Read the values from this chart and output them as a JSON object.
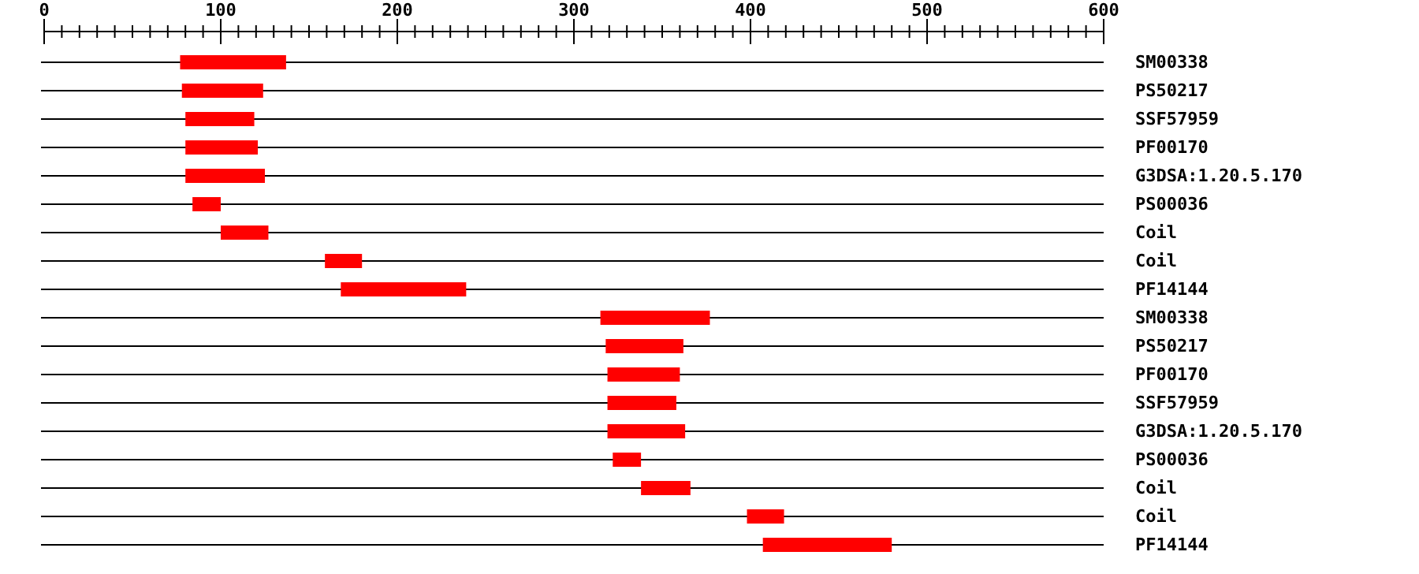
{
  "chart_data": {
    "type": "bar",
    "orientation": "horizontal",
    "color": "#ff0000",
    "grid": "y",
    "categories": [
      "SM00338",
      "PS50217",
      "SSF57959",
      "PF00170",
      "G3DSA:1.20.5.170",
      "PS00036",
      "Coil",
      "Coil",
      "PF14144",
      "SM00338",
      "PS50217",
      "PF00170",
      "SSF57959",
      "G3DSA:1.20.5.170",
      "PS00036",
      "Coil",
      "Coil",
      "PF14144"
    ],
    "base": [
      77,
      78,
      80,
      80,
      80,
      84,
      100,
      159,
      168,
      315,
      318,
      319,
      319,
      319,
      322,
      338,
      398,
      407
    ],
    "values": [
      60,
      46,
      39,
      41,
      45,
      16,
      27,
      21,
      71,
      62,
      44,
      41,
      39,
      44,
      16,
      28,
      21,
      73
    ],
    "xlim": [
      0,
      600
    ],
    "xticks": [
      0,
      {
        "value": 10,
        "label": null
      },
      {
        "value": 20,
        "label": null
      },
      {
        "value": 30,
        "label": null
      },
      {
        "value": 40,
        "label": null
      },
      {
        "value": 50,
        "label": null
      },
      {
        "value": 60,
        "label": null
      },
      {
        "value": 70,
        "label": null
      },
      {
        "value": 80,
        "label": null
      },
      {
        "value": 90,
        "label": null
      },
      100,
      {
        "value": 110,
        "label": null
      },
      {
        "value": 120,
        "label": null
      },
      {
        "value": 130,
        "label": null
      },
      {
        "value": 140,
        "label": null
      },
      {
        "value": 150,
        "label": null
      },
      {
        "value": 160,
        "label": null
      },
      {
        "value": 170,
        "label": null
      },
      {
        "value": 180,
        "label": null
      },
      {
        "value": 190,
        "label": null
      },
      200,
      {
        "value": 210,
        "label": null
      },
      {
        "value": 220,
        "label": null
      },
      {
        "value": 230,
        "label": null
      },
      {
        "value": 240,
        "label": null
      },
      {
        "value": 250,
        "label": null
      },
      {
        "value": 260,
        "label": null
      },
      {
        "value": 270,
        "label": null
      },
      {
        "value": 280,
        "label": null
      },
      {
        "value": 290,
        "label": null
      },
      300,
      {
        "value": 310,
        "label": null
      },
      {
        "value": 320,
        "label": null
      },
      {
        "value": 330,
        "label": null
      },
      {
        "value": 340,
        "label": null
      },
      {
        "value": 350,
        "label": null
      },
      {
        "value": 360,
        "label": null
      },
      {
        "value": 370,
        "label": null
      },
      {
        "value": 380,
        "label": null
      },
      {
        "value": 390,
        "label": null
      },
      400,
      {
        "value": 410,
        "label": null
      },
      {
        "value": 420,
        "label": null
      },
      {
        "value": 430,
        "label": null
      },
      {
        "value": 440,
        "label": null
      },
      {
        "value": 450,
        "label": null
      },
      {
        "value": 460,
        "label": null
      },
      {
        "value": 470,
        "label": null
      },
      {
        "value": 480,
        "label": null
      },
      {
        "value": 490,
        "label": null
      },
      500,
      {
        "value": 510,
        "label": null
      },
      {
        "value": 520,
        "label": null
      },
      {
        "value": 530,
        "label": null
      },
      {
        "value": 540,
        "label": null
      },
      {
        "value": 550,
        "label": null
      },
      {
        "value": 560,
        "label": null
      },
      {
        "value": 570,
        "label": null
      },
      {
        "value": 580,
        "label": null
      },
      {
        "value": 590,
        "label": null
      },
      600
    ]
  }
}
